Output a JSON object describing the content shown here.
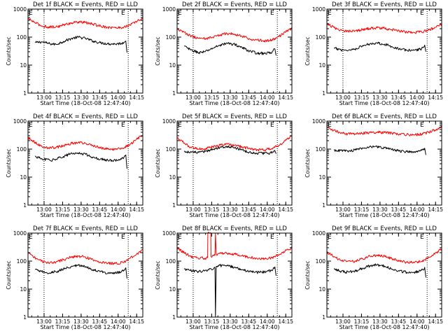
{
  "page": {
    "background": "#ffffff",
    "colors": {
      "events": "#000000",
      "lld": "#ff0000",
      "axes": "#000000"
    }
  },
  "chart_data": [
    {
      "type": "line",
      "title": "Det 1f BLACK = Events, RED = LLD",
      "xlabel": "Start Time (18-Oct-08 12:47:40)",
      "ylabel": "Counts/sec",
      "scale_y": "log",
      "ylim": [
        1,
        1000
      ],
      "y_ticks": [
        "1",
        "10",
        "100",
        "1000"
      ],
      "x_ticks": [
        "13:00",
        "13:15",
        "13:30",
        "13:45",
        "14:00",
        "14:15"
      ],
      "xlim_minutes": [
        -0.7,
        92.3
      ],
      "dotted_marker_minutes": [
        12.3,
        80.5
      ],
      "marker_labels": [
        "E",
        "E"
      ],
      "series": [
        {
          "name": "Events",
          "color": "#000000",
          "x_minutes": [
            5.0,
            10.0,
            17.0,
            22.0,
            28.0,
            34.0,
            40.0,
            46.0,
            52.0,
            58.0,
            64.0,
            70.0,
            75.0,
            77.0,
            78.5,
            79.5
          ],
          "values": [
            63,
            68,
            58,
            55,
            70,
            88,
            100,
            90,
            72,
            63,
            58,
            57,
            60,
            64,
            72,
            28
          ]
        },
        {
          "name": "LLD",
          "color": "#ff0000",
          "x_minutes": [
            -0.7,
            5.0,
            10.0,
            16.0,
            22.0,
            28.0,
            34.0,
            40.0,
            46.0,
            52.0,
            58.0,
            64.0,
            70.0,
            76.0,
            82.0,
            88.0,
            92.3
          ],
          "values": [
            460,
            330,
            255,
            230,
            232,
            270,
            320,
            350,
            330,
            290,
            250,
            225,
            215,
            222,
            270,
            380,
            460
          ]
        }
      ]
    },
    {
      "type": "line",
      "title": "Det 2f BLACK = Events, RED = LLD",
      "xlabel": "Start Time (18-Oct-08 12:47:40)",
      "ylabel": "Counts/sec",
      "scale_y": "log",
      "ylim": [
        1,
        1000
      ],
      "y_ticks": [
        "1",
        "10",
        "100",
        "1000"
      ],
      "x_ticks": [
        "13:00",
        "13:15",
        "13:30",
        "13:45",
        "14:00",
        "14:15"
      ],
      "xlim_minutes": [
        -0.7,
        92.3
      ],
      "dotted_marker_minutes": [
        12.3,
        80.5
      ],
      "marker_labels": [
        "E",
        "E"
      ],
      "series": [
        {
          "name": "Events",
          "color": "#000000",
          "x_minutes": [
            5.0,
            10.0,
            17.0,
            22.0,
            28.0,
            34.0,
            40.0,
            46.0,
            52.0,
            58.0,
            64.0,
            70.0,
            75.0,
            77.0,
            78.5,
            79.5
          ],
          "values": [
            48,
            35,
            28,
            30,
            40,
            52,
            60,
            55,
            42,
            32,
            27,
            26,
            28,
            32,
            38,
            22
          ]
        },
        {
          "name": "LLD",
          "color": "#ff0000",
          "x_minutes": [
            -0.7,
            5.0,
            10.0,
            16.0,
            22.0,
            28.0,
            34.0,
            40.0,
            46.0,
            52.0,
            58.0,
            64.0,
            70.0,
            76.0,
            82.0,
            88.0,
            92.3
          ],
          "values": [
            195,
            150,
            112,
            92,
            88,
            100,
            120,
            135,
            128,
            108,
            88,
            78,
            74,
            80,
            105,
            160,
            200
          ]
        }
      ]
    },
    {
      "type": "line",
      "title": "Det 3f BLACK = Events, RED = LLD",
      "xlabel": "Start Time (18-Oct-08 12:47:40)",
      "ylabel": "Counts/sec",
      "scale_y": "log",
      "ylim": [
        1,
        1000
      ],
      "y_ticks": [
        "1",
        "10",
        "100",
        "1000"
      ],
      "x_ticks": [
        "13:00",
        "13:15",
        "13:30",
        "13:45",
        "14:00",
        "14:15"
      ],
      "xlim_minutes": [
        -0.7,
        92.3
      ],
      "dotted_marker_minutes": [
        12.3,
        80.5
      ],
      "marker_labels": [
        "E",
        "E"
      ],
      "series": [
        {
          "name": "Events",
          "color": "#000000",
          "x_minutes": [
            5.0,
            10.0,
            17.0,
            22.0,
            28.0,
            34.0,
            40.0,
            46.0,
            52.0,
            58.0,
            64.0,
            70.0,
            75.0,
            77.0,
            78.5,
            79.5
          ],
          "values": [
            40,
            36,
            34,
            38,
            48,
            58,
            62,
            56,
            46,
            38,
            34,
            34,
            37,
            42,
            52,
            30
          ]
        },
        {
          "name": "LLD",
          "color": "#ff0000",
          "x_minutes": [
            -0.7,
            5.0,
            10.0,
            16.0,
            22.0,
            28.0,
            34.0,
            40.0,
            46.0,
            52.0,
            58.0,
            64.0,
            70.0,
            76.0,
            82.0,
            88.0,
            92.3
          ],
          "values": [
            300,
            220,
            175,
            165,
            168,
            185,
            205,
            215,
            205,
            185,
            165,
            152,
            148,
            155,
            180,
            230,
            290
          ]
        }
      ]
    },
    {
      "type": "line",
      "title": "Det 4f BLACK = Events, RED = LLD",
      "xlabel": "Start Time (18-Oct-08 12:47:40)",
      "ylabel": "Counts/sec",
      "scale_y": "log",
      "ylim": [
        1,
        1000
      ],
      "y_ticks": [
        "1",
        "10",
        "100",
        "1000"
      ],
      "x_ticks": [
        "13:00",
        "13:15",
        "13:30",
        "13:45",
        "14:00",
        "14:15"
      ],
      "xlim_minutes": [
        -0.7,
        92.3
      ],
      "dotted_marker_minutes": [
        12.3,
        80.5
      ],
      "marker_labels": [
        "E",
        "E"
      ],
      "series": [
        {
          "name": "Events",
          "color": "#000000",
          "x_minutes": [
            5.0,
            10.0,
            17.0,
            22.0,
            28.0,
            34.0,
            40.0,
            46.0,
            52.0,
            58.0,
            64.0,
            70.0,
            75.0,
            77.0,
            78.5,
            79.5
          ],
          "values": [
            55,
            45,
            40,
            44,
            55,
            68,
            72,
            65,
            52,
            44,
            40,
            40,
            44,
            50,
            62,
            20
          ]
        },
        {
          "name": "LLD",
          "color": "#ff0000",
          "x_minutes": [
            -0.7,
            5.0,
            10.0,
            16.0,
            22.0,
            28.0,
            34.0,
            40.0,
            46.0,
            52.0,
            58.0,
            64.0,
            70.0,
            76.0,
            82.0,
            88.0,
            92.3
          ],
          "values": [
            260,
            175,
            128,
            112,
            115,
            135,
            160,
            172,
            160,
            135,
            112,
            100,
            98,
            108,
            150,
            230,
            320
          ]
        }
      ]
    },
    {
      "type": "line",
      "title": "Det 5f BLACK = Events, RED = LLD",
      "xlabel": "Start Time (18-Oct-08 12:47:40)",
      "ylabel": "Counts/sec",
      "scale_y": "log",
      "ylim": [
        1,
        1000
      ],
      "y_ticks": [
        "1",
        "10",
        "100",
        "1000"
      ],
      "x_ticks": [
        "13:00",
        "13:15",
        "13:30",
        "13:45",
        "14:00",
        "14:15"
      ],
      "xlim_minutes": [
        -0.7,
        92.3
      ],
      "dotted_marker_minutes": [
        12.3,
        80.5
      ],
      "marker_labels": [
        "E",
        "E"
      ],
      "series": [
        {
          "name": "Events",
          "color": "#000000",
          "x_minutes": [
            5.0,
            10.0,
            17.0,
            22.0,
            28.0,
            34.0,
            40.0,
            46.0,
            52.0,
            58.0,
            64.0,
            70.0,
            75.0,
            77.0,
            78.5,
            79.5
          ],
          "values": [
            82,
            78,
            75,
            82,
            100,
            118,
            125,
            112,
            92,
            78,
            72,
            70,
            74,
            80,
            88,
            68
          ]
        },
        {
          "name": "LLD",
          "color": "#ff0000",
          "x_minutes": [
            -0.7,
            5.0,
            10.0,
            16.0,
            22.0,
            28.0,
            34.0,
            40.0,
            46.0,
            52.0,
            58.0,
            64.0,
            70.0,
            76.0,
            82.0,
            88.0,
            92.3
          ],
          "values": [
            250,
            165,
            118,
            102,
            104,
            120,
            140,
            150,
            140,
            120,
            104,
            96,
            94,
            104,
            140,
            215,
            300
          ]
        }
      ]
    },
    {
      "type": "line",
      "title": "Det 6f BLACK = Events, RED = LLD",
      "xlabel": "Start Time (18-Oct-08 12:47:40)",
      "ylabel": "Counts/sec",
      "scale_y": "log",
      "ylim": [
        1,
        1000
      ],
      "y_ticks": [
        "1",
        "10",
        "100",
        "1000"
      ],
      "x_ticks": [
        "13:00",
        "13:15",
        "13:30",
        "13:45",
        "14:00",
        "14:15"
      ],
      "xlim_minutes": [
        -0.7,
        92.3
      ],
      "dotted_marker_minutes": [],
      "marker_labels": [
        "E",
        "E"
      ],
      "series": [
        {
          "name": "Events",
          "color": "#000000",
          "x_minutes": [
            5.0,
            10.0,
            17.0,
            22.0,
            28.0,
            34.0,
            40.0,
            46.0,
            52.0,
            58.0,
            64.0,
            70.0,
            75.0,
            77.0,
            78.5,
            79.5
          ],
          "values": [
            92,
            88,
            86,
            92,
            108,
            120,
            122,
            112,
            96,
            86,
            82,
            82,
            86,
            94,
            108,
            62
          ]
        },
        {
          "name": "LLD",
          "color": "#ff0000",
          "x_minutes": [
            -0.7,
            5.0,
            10.0,
            16.0,
            22.0,
            28.0,
            34.0,
            40.0,
            46.0,
            52.0,
            58.0,
            64.0,
            70.0,
            76.0,
            82.0,
            88.0,
            92.3
          ],
          "values": [
            600,
            470,
            385,
            350,
            348,
            368,
            395,
            405,
            392,
            368,
            345,
            330,
            325,
            340,
            405,
            520,
            640
          ]
        }
      ]
    },
    {
      "type": "line",
      "title": "Det 7f BLACK = Events, RED = LLD",
      "xlabel": "Start Time (18-Oct-08 12:47:40)",
      "ylabel": "Counts/sec",
      "scale_y": "log",
      "ylim": [
        1,
        1000
      ],
      "y_ticks": [
        "1",
        "10",
        "100",
        "1000"
      ],
      "x_ticks": [
        "13:00",
        "13:15",
        "13:30",
        "13:45",
        "14:00",
        "14:15"
      ],
      "xlim_minutes": [
        -0.7,
        92.3
      ],
      "dotted_marker_minutes": [
        12.3,
        80.5
      ],
      "marker_labels": [
        "E",
        "E"
      ],
      "series": [
        {
          "name": "Events",
          "color": "#000000",
          "x_minutes": [
            5.0,
            10.0,
            17.0,
            22.0,
            28.0,
            34.0,
            40.0,
            46.0,
            52.0,
            58.0,
            64.0,
            70.0,
            75.0,
            77.0,
            78.5,
            79.5
          ],
          "values": [
            50,
            42,
            38,
            42,
            52,
            64,
            70,
            63,
            50,
            42,
            38,
            38,
            42,
            48,
            58,
            24
          ]
        },
        {
          "name": "LLD",
          "color": "#ff0000",
          "x_minutes": [
            -0.7,
            5.0,
            10.0,
            16.0,
            22.0,
            28.0,
            34.0,
            40.0,
            46.0,
            52.0,
            58.0,
            64.0,
            70.0,
            76.0,
            82.0,
            88.0,
            92.3
          ],
          "values": [
            200,
            135,
            98,
            88,
            92,
            112,
            138,
            150,
            138,
            112,
            92,
            84,
            82,
            90,
            125,
            190,
            250
          ]
        }
      ]
    },
    {
      "type": "line",
      "title": "Det 8f BLACK = Events, RED = LLD",
      "xlabel": "Start Time (18-Oct-08 12:47:40)",
      "ylabel": "Counts/sec",
      "scale_y": "log",
      "ylim": [
        1,
        1000
      ],
      "y_ticks": [
        "1",
        "10",
        "100",
        "1000"
      ],
      "x_ticks": [
        "13:00",
        "13:15",
        "13:30",
        "13:45",
        "14:00",
        "14:15"
      ],
      "xlim_minutes": [
        -0.7,
        92.3
      ],
      "dotted_marker_minutes": [
        12.3,
        80.5
      ],
      "marker_labels": [
        "E",
        "E"
      ],
      "series": [
        {
          "name": "Events",
          "color": "#000000",
          "x_minutes": [
            5.0,
            10.0,
            17.0,
            22.0,
            24.0,
            30.0,
            30.4,
            31.0,
            34.0,
            40.0,
            46.0,
            52.0,
            58.0,
            64.0,
            70.0,
            75.0,
            77.0,
            78.5,
            79.5
          ],
          "values": [
            52,
            46,
            42,
            46,
            48,
            58,
            1,
            65,
            70,
            68,
            60,
            50,
            42,
            40,
            42,
            46,
            52,
            62,
            30
          ]
        },
        {
          "name": "LLD",
          "color": "#ff0000",
          "x_minutes": [
            -0.7,
            5.0,
            10.0,
            16.0,
            22.0,
            24.0,
            24.2,
            26.6,
            26.8,
            30.0,
            30.4,
            31.0,
            34.0,
            40.0,
            46.0,
            52.0,
            58.0,
            64.0,
            70.0,
            76.0,
            82.0,
            88.0,
            92.3
          ],
          "values": [
            290,
            200,
            150,
            130,
            128,
            132,
            1000,
            1000,
            145,
            160,
            1000,
            175,
            185,
            190,
            178,
            155,
            135,
            125,
            122,
            132,
            172,
            245,
            300
          ]
        }
      ]
    },
    {
      "type": "line",
      "title": "Det 9f BLACK = Events, RED = LLD",
      "xlabel": "Start Time (18-Oct-08 12:47:40)",
      "ylabel": "Counts/sec",
      "scale_y": "log",
      "ylim": [
        1,
        1000
      ],
      "y_ticks": [
        "1",
        "10",
        "100",
        "1000"
      ],
      "x_ticks": [
        "13:00",
        "13:15",
        "13:30",
        "13:45",
        "14:00",
        "14:15"
      ],
      "xlim_minutes": [
        -0.7,
        92.3
      ],
      "dotted_marker_minutes": [
        80.5
      ],
      "marker_labels": [
        "E",
        "E"
      ],
      "series": [
        {
          "name": "Events",
          "color": "#000000",
          "x_minutes": [
            5.0,
            10.0,
            17.0,
            22.0,
            28.0,
            34.0,
            40.0,
            46.0,
            52.0,
            58.0,
            64.0,
            70.0,
            75.0,
            77.0,
            78.5,
            79.5
          ],
          "values": [
            52,
            44,
            40,
            44,
            55,
            68,
            74,
            66,
            52,
            44,
            40,
            40,
            44,
            50,
            60,
            26
          ]
        },
        {
          "name": "LLD",
          "color": "#ff0000",
          "x_minutes": [
            -0.7,
            5.0,
            10.0,
            16.0,
            22.0,
            28.0,
            34.0,
            40.0,
            46.0,
            52.0,
            58.0,
            64.0,
            70.0,
            76.0,
            82.0,
            88.0,
            92.3
          ],
          "values": [
            210,
            145,
            108,
            98,
            100,
            120,
            148,
            162,
            150,
            122,
            100,
            92,
            90,
            98,
            135,
            205,
            270
          ]
        }
      ]
    }
  ]
}
